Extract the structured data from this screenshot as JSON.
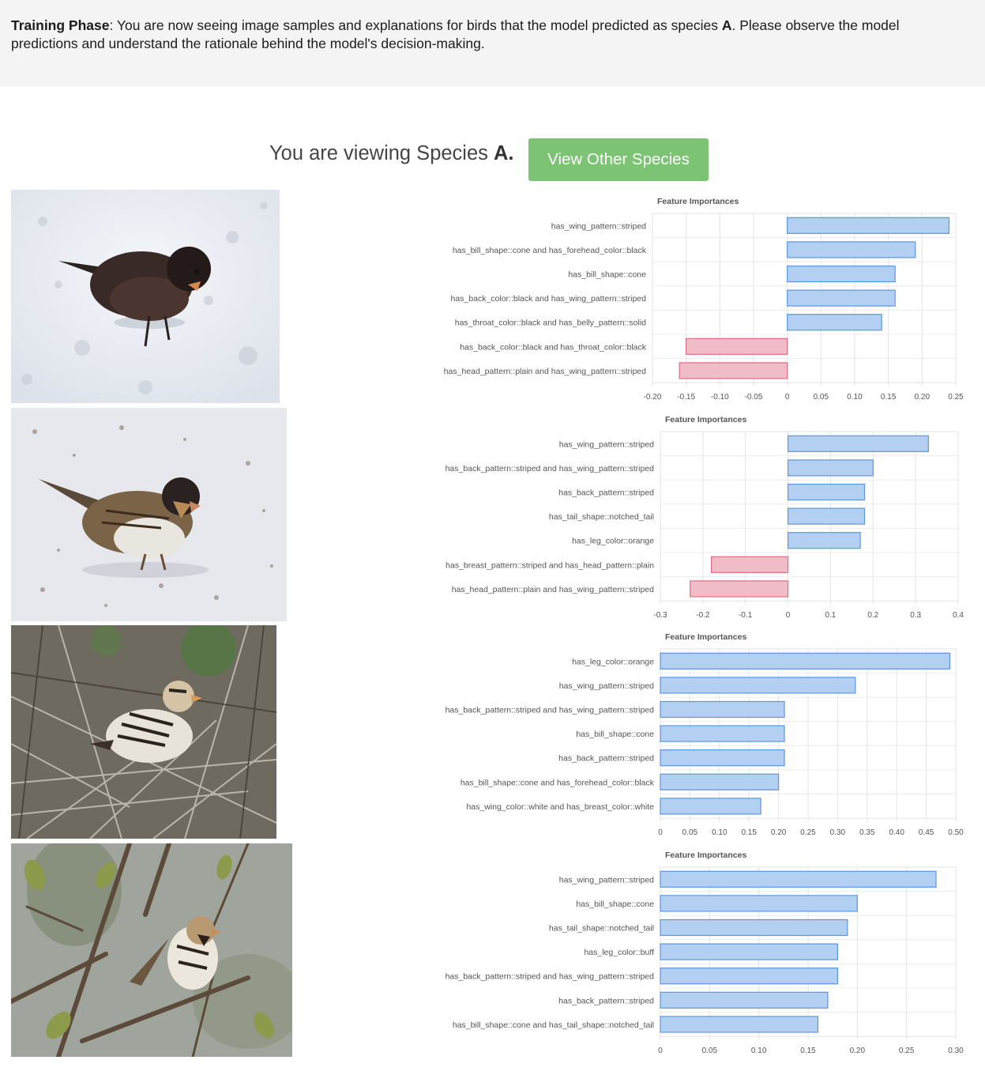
{
  "banner": {
    "bold_lead": "Training Phase",
    "text_1": ": You are now seeing image samples and explanations for birds that the model predicted as species ",
    "species_bold": "A",
    "text_2": ". Please observe the model predictions and understand the rationale behind the model's decision-making."
  },
  "header": {
    "viewing_prefix": "You are viewing Species ",
    "species": "A.",
    "button_label": "View Other Species"
  },
  "colors": {
    "positive_fill": "#b3cff1",
    "positive_stroke": "#5a97e0",
    "negative_fill": "#f0bcc8",
    "negative_stroke": "#e06b84",
    "button": "#7cc474"
  },
  "samples": [
    {
      "image_desc": "dark bird on snow",
      "chart_data": {
        "type": "bar",
        "orientation": "horizontal",
        "title": "Feature Importances",
        "categories": [
          "has_wing_pattern::striped",
          "has_bill_shape::cone and has_forehead_color::black",
          "has_bill_shape::cone",
          "has_back_color::black and has_wing_pattern::striped",
          "has_throat_color::black and has_belly_pattern::solid",
          "has_back_color::black and has_throat_color::black",
          "has_head_pattern::plain and has_wing_pattern::striped"
        ],
        "values": [
          0.24,
          0.19,
          0.16,
          0.16,
          0.14,
          -0.15,
          -0.16
        ],
        "xlim": [
          -0.2,
          0.25
        ],
        "ticks": [
          "-0.20",
          "-0.15",
          "-0.10",
          "-0.05",
          "0",
          "0.05",
          "0.10",
          "0.15",
          "0.20",
          "0.25"
        ],
        "tick_values": [
          -0.2,
          -0.15,
          -0.1,
          -0.05,
          0,
          0.05,
          0.1,
          0.15,
          0.2,
          0.25
        ],
        "grid": true
      }
    },
    {
      "image_desc": "sparrow on snow",
      "chart_data": {
        "type": "bar",
        "orientation": "horizontal",
        "title": "Feature Importances",
        "categories": [
          "has_wing_pattern::striped",
          "has_back_pattern::striped and has_wing_pattern::striped",
          "has_back_pattern::striped",
          "has_tail_shape::notched_tail",
          "has_leg_color::orange",
          "has_breast_pattern::striped and has_head_pattern::plain",
          "has_head_pattern::plain and has_wing_pattern::striped"
        ],
        "values": [
          0.33,
          0.2,
          0.18,
          0.18,
          0.17,
          -0.18,
          -0.23
        ],
        "xlim": [
          -0.3,
          0.4
        ],
        "ticks": [
          "-0.3",
          "-0.2",
          "-0.1",
          "0",
          "0.1",
          "0.2",
          "0.3",
          "0.4"
        ],
        "tick_values": [
          -0.3,
          -0.2,
          -0.1,
          0,
          0.1,
          0.2,
          0.3,
          0.4
        ],
        "grid": true
      }
    },
    {
      "image_desc": "sparrow among twigs",
      "chart_data": {
        "type": "bar",
        "orientation": "horizontal",
        "title": "Feature Importances",
        "categories": [
          "has_leg_color::orange",
          "has_wing_pattern::striped",
          "has_back_pattern::striped and has_wing_pattern::striped",
          "has_bill_shape::cone",
          "has_back_pattern::striped",
          "has_bill_shape::cone and has_forehead_color::black",
          "has_wing_color::white and has_breast_color::white"
        ],
        "values": [
          0.49,
          0.33,
          0.21,
          0.21,
          0.21,
          0.2,
          0.17
        ],
        "xlim": [
          0,
          0.5
        ],
        "ticks": [
          "0",
          "0.05",
          "0.10",
          "0.15",
          "0.20",
          "0.25",
          "0.30",
          "0.35",
          "0.40",
          "0.45",
          "0.50"
        ],
        "tick_values": [
          0,
          0.05,
          0.1,
          0.15,
          0.2,
          0.25,
          0.3,
          0.35,
          0.4,
          0.45,
          0.5
        ],
        "grid": true
      }
    },
    {
      "image_desc": "sparrow perched on branch",
      "chart_data": {
        "type": "bar",
        "orientation": "horizontal",
        "title": "Feature Importances",
        "categories": [
          "has_wing_pattern::striped",
          "has_bill_shape::cone",
          "has_tail_shape::notched_tail",
          "has_leg_color::buff",
          "has_back_pattern::striped and has_wing_pattern::striped",
          "has_back_pattern::striped",
          "has_bill_shape::cone and has_tail_shape::notched_tail"
        ],
        "values": [
          0.28,
          0.2,
          0.19,
          0.18,
          0.18,
          0.17,
          0.16
        ],
        "xlim": [
          0,
          0.3
        ],
        "ticks": [
          "0",
          "0.05",
          "0.10",
          "0.15",
          "0.20",
          "0.25",
          "0.30"
        ],
        "tick_values": [
          0,
          0.05,
          0.1,
          0.15,
          0.2,
          0.25,
          0.3
        ],
        "grid": true
      }
    }
  ]
}
